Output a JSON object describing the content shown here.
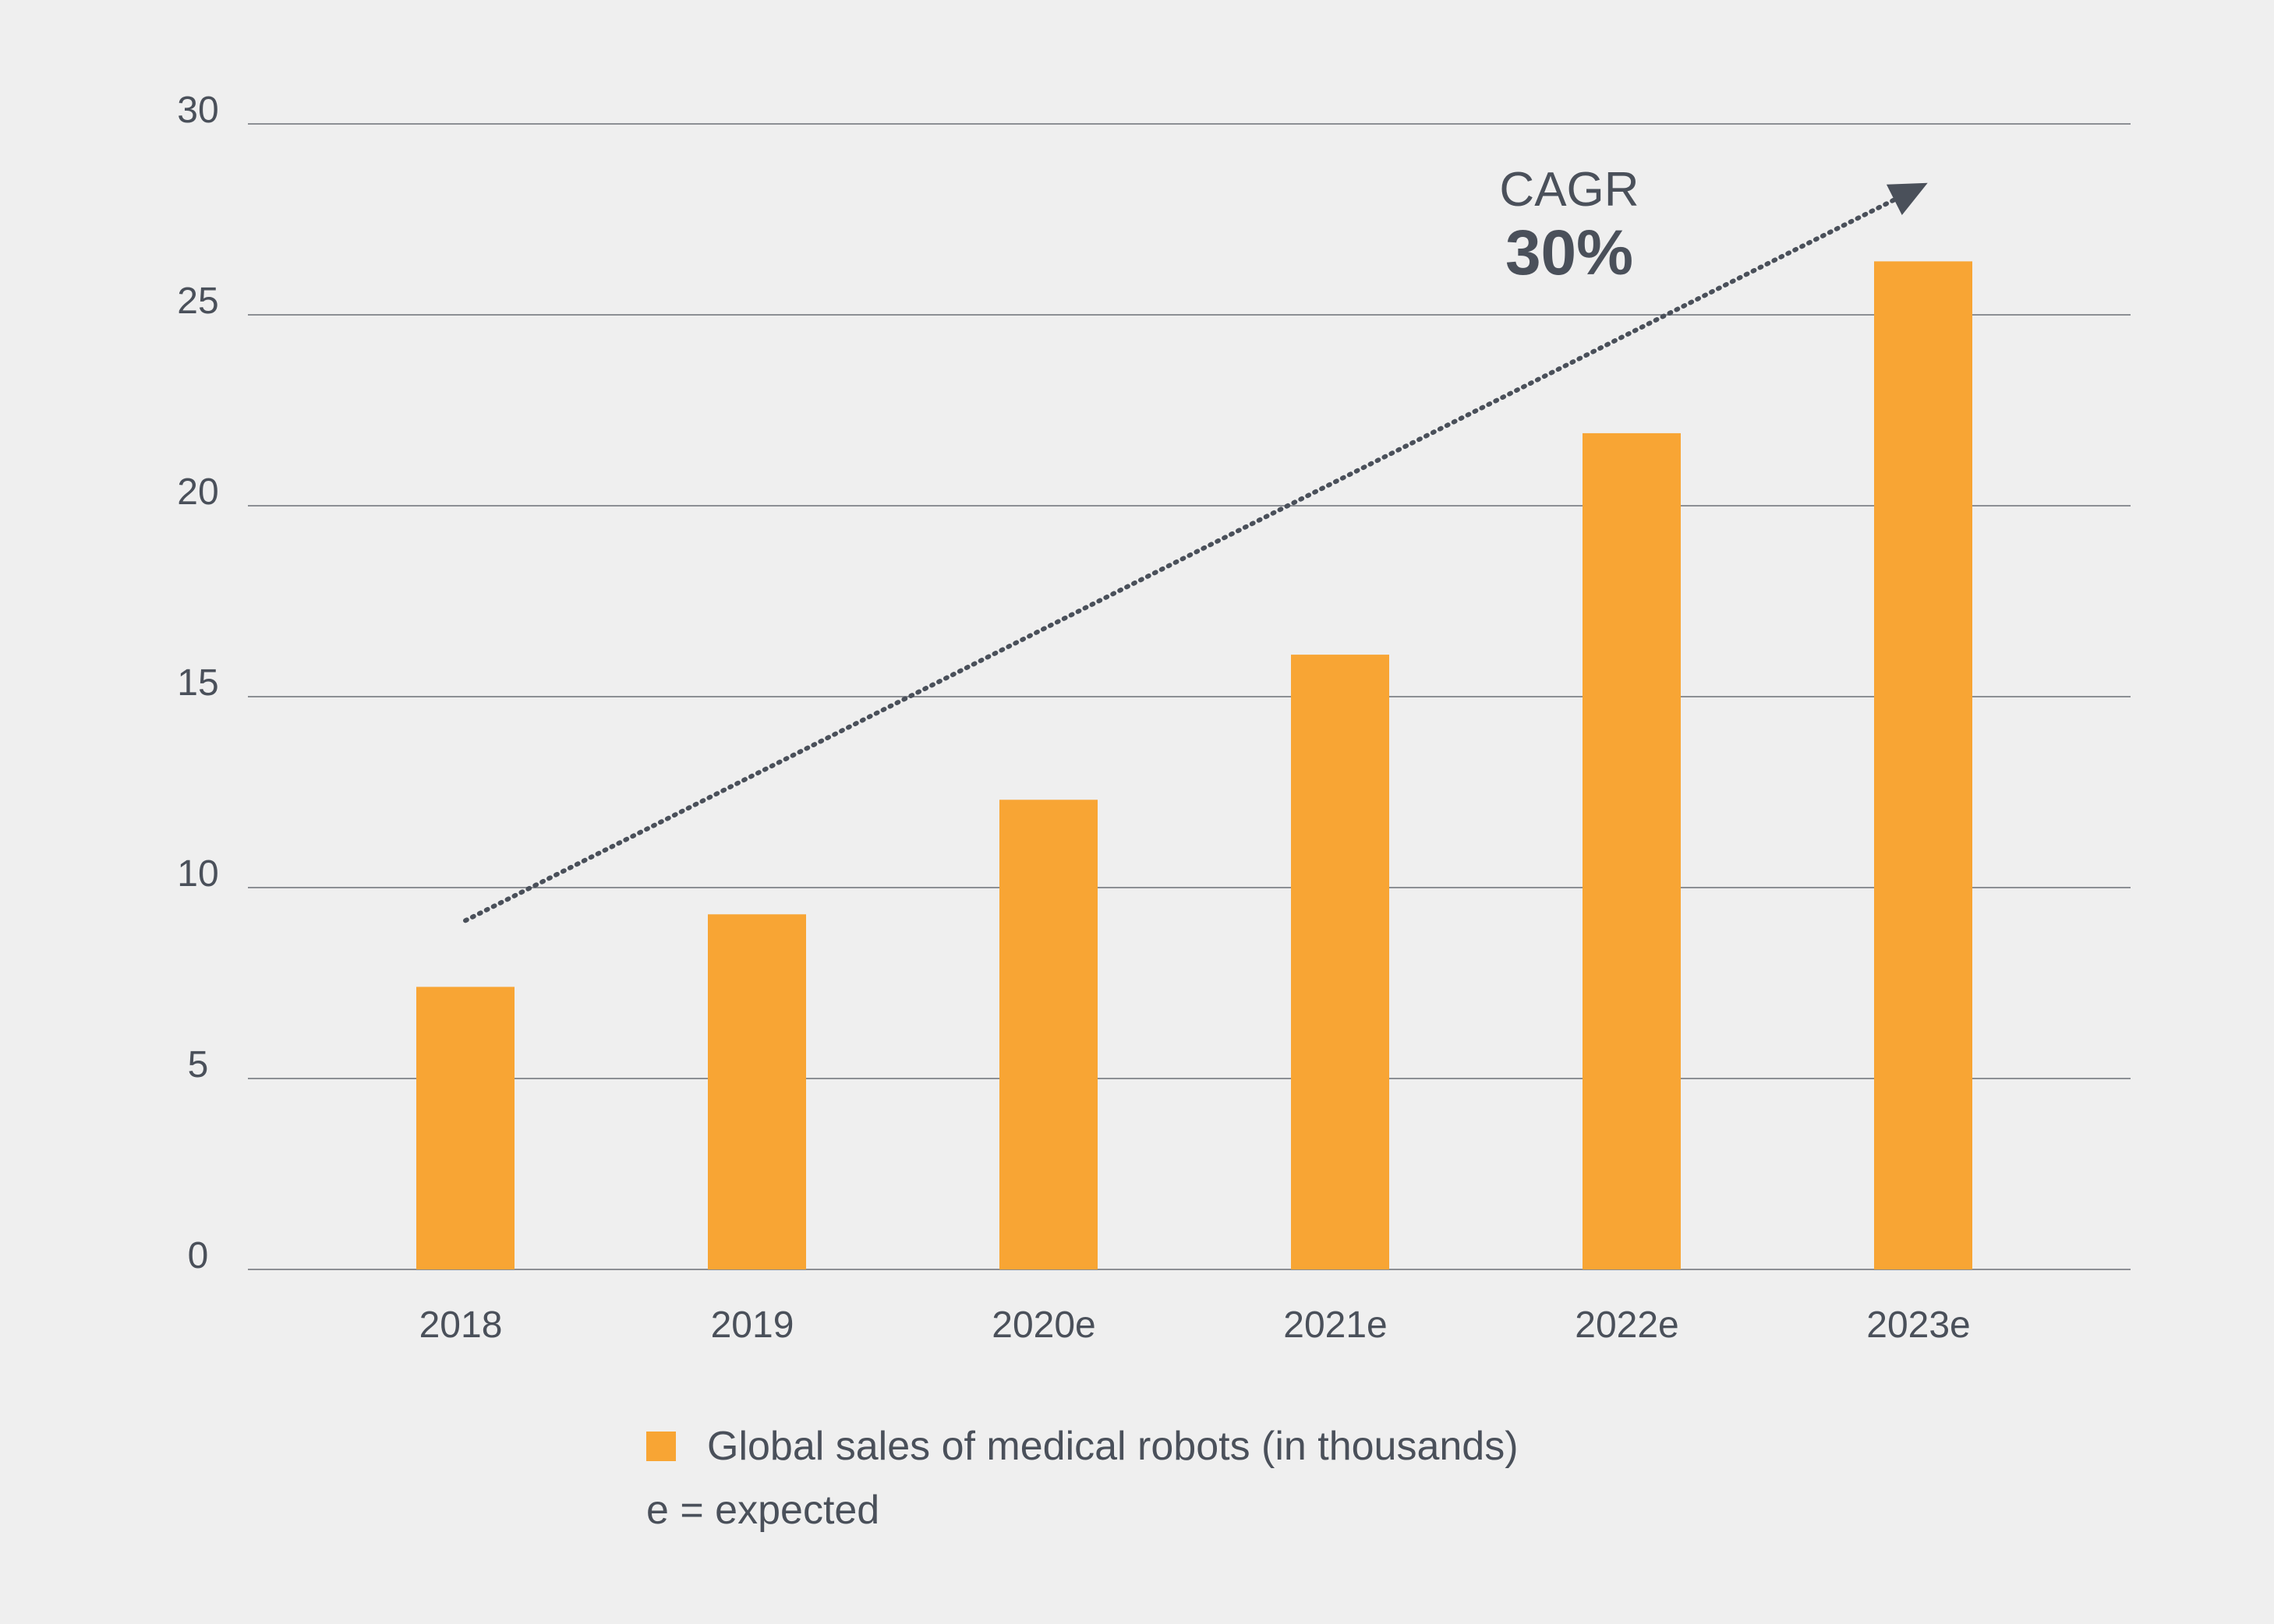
{
  "chart_data": {
    "type": "bar",
    "title": "",
    "xlabel": "",
    "ylabel": "",
    "categories": [
      "2018",
      "2019",
      "2020e",
      "2021e",
      "2022e",
      "2023e"
    ],
    "series": [
      {
        "name": "Global sales of medical robots (in thousands)",
        "values": [
          7.4,
          9.3,
          12.3,
          16.1,
          21.9,
          26.4
        ],
        "color": "#f8a534"
      }
    ],
    "ylim": [
      0,
      30
    ],
    "yticks": [
      "0",
      "5",
      "10",
      "15",
      "20",
      "25",
      "30"
    ],
    "grid": true,
    "legend_position": "bottom",
    "annotation": {
      "label": "CAGR",
      "value": "30%",
      "arrow_from": [
        0,
        9.3
      ],
      "arrow_to": [
        5,
        28.8
      ]
    },
    "note": "e = expected"
  },
  "colors": {
    "background": "#efefef",
    "bar": "#f8a534",
    "text": "#4a505a",
    "grid": "#8c8f94",
    "arrow": "#4a505a"
  }
}
